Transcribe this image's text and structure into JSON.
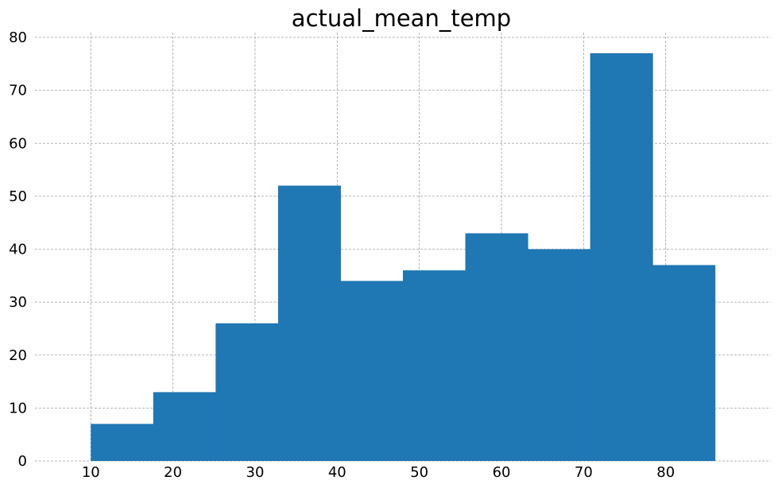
{
  "chart_data": {
    "type": "bar",
    "title": "actual_mean_temp",
    "xlabel": "",
    "ylabel": "",
    "bins": [
      {
        "x0": 10.0,
        "x1": 17.6,
        "count": 7
      },
      {
        "x0": 17.6,
        "x1": 25.2,
        "count": 13
      },
      {
        "x0": 25.2,
        "x1": 32.8,
        "count": 26
      },
      {
        "x0": 32.8,
        "x1": 40.4,
        "count": 52
      },
      {
        "x0": 40.4,
        "x1": 48.0,
        "count": 34
      },
      {
        "x0": 48.0,
        "x1": 55.6,
        "count": 36
      },
      {
        "x0": 55.6,
        "x1": 63.2,
        "count": 43
      },
      {
        "x0": 63.2,
        "x1": 70.8,
        "count": 40
      },
      {
        "x0": 70.8,
        "x1": 78.4,
        "count": 77
      },
      {
        "x0": 78.4,
        "x1": 86.0,
        "count": 37
      }
    ],
    "xlim": [
      3.2,
      92.8
    ],
    "ylim": [
      0,
      80
    ],
    "xticks": [
      10,
      20,
      30,
      40,
      50,
      60,
      70,
      80
    ],
    "yticks": [
      0,
      10,
      20,
      30,
      40,
      50,
      60,
      70,
      80
    ],
    "grid": true,
    "bar_color": "#1f77b4"
  }
}
